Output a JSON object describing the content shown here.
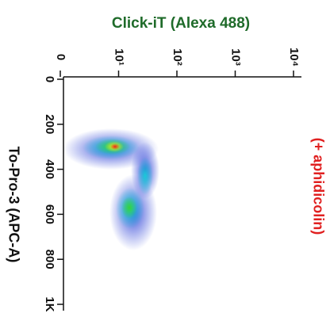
{
  "chart_data": {
    "type": "density",
    "title": "Click-iT (Alexa 488)",
    "ylabel": "To-Pro-3 (APC-A)",
    "annotation": "(+ aphidicolin)",
    "xlim": [
      0,
      10000
    ],
    "xticks": [
      0,
      {
        "value": 10,
        "label": "10¹"
      },
      {
        "value": 100,
        "label": "10²"
      },
      {
        "value": 1000,
        "label": "10³"
      },
      {
        "value": 10000,
        "label": "10⁴"
      }
    ],
    "xscale": "log",
    "ylim": [
      0,
      1000
    ],
    "yticks": [
      0,
      200,
      400,
      600,
      800,
      {
        "value": 1000,
        "label": "1K"
      }
    ]
  }
}
